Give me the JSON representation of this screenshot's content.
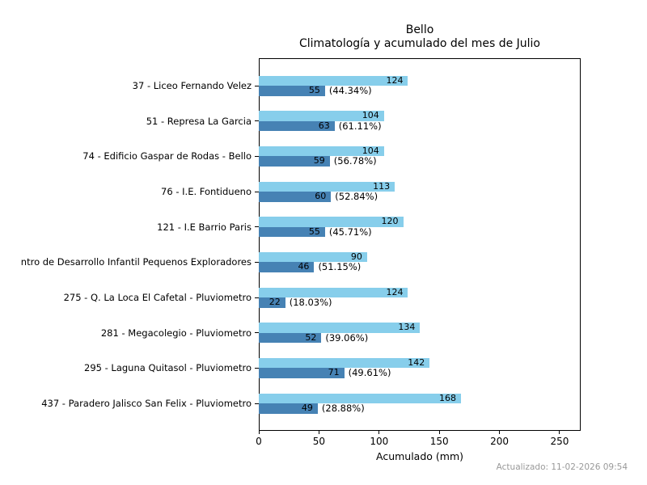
{
  "figure": {
    "title": "Bello",
    "subtitle": "Climatología y acumulado del mes de Julio",
    "xlabel": "Acumulado (mm)",
    "annotation": "Actualizado: 11-02-2026 09:54"
  },
  "chart_data": {
    "type": "bar",
    "orientation": "horizontal",
    "title": "Bello",
    "subtitle": "Climatología y acumulado del mes de Julio",
    "xlabel": "Acumulado (mm)",
    "xlim": [
      0,
      267.5
    ],
    "xticks": [
      0,
      50,
      100,
      150,
      200,
      250
    ],
    "grid": false,
    "legend": false,
    "categories": [
      "37 - Liceo Fernando Velez",
      "51 - Represa La Garcia",
      "74 - Edificio Gaspar de Rodas - Bello",
      "76 - I.E. Fontidueno",
      "121 - I.E Barrio Paris",
      "ntro de Desarrollo Infantil Pequenos Exploradores",
      "275 - Q. La Loca El Cafetal - Pluviometro",
      "281 - Megacolegio - Pluviometro",
      "295 - Laguna Quitasol - Pluviometro",
      "437 - Paradero Jalisco San Felix - Pluviometro"
    ],
    "series": [
      {
        "name": "Climatología",
        "color": "#87CEEB",
        "values": [
          124,
          104,
          104,
          113,
          120,
          90,
          124,
          134,
          142,
          168
        ]
      },
      {
        "name": "Acumulado",
        "color": "#4682B4",
        "values": [
          55,
          63,
          59,
          60,
          55,
          46,
          22,
          52,
          71,
          49
        ]
      }
    ],
    "percent_labels": [
      "(44.34%)",
      "(61.11%)",
      "(56.78%)",
      "(52.84%)",
      "(45.71%)",
      "(51.15%)",
      "(18.03%)",
      "(39.06%)",
      "(49.61%)",
      "(28.88%)"
    ],
    "colors": {
      "climatologia": "#87CEEB",
      "acumulado": "#4682B4",
      "text": "#000000",
      "annotation": "#999999",
      "spine": "#000000"
    }
  }
}
